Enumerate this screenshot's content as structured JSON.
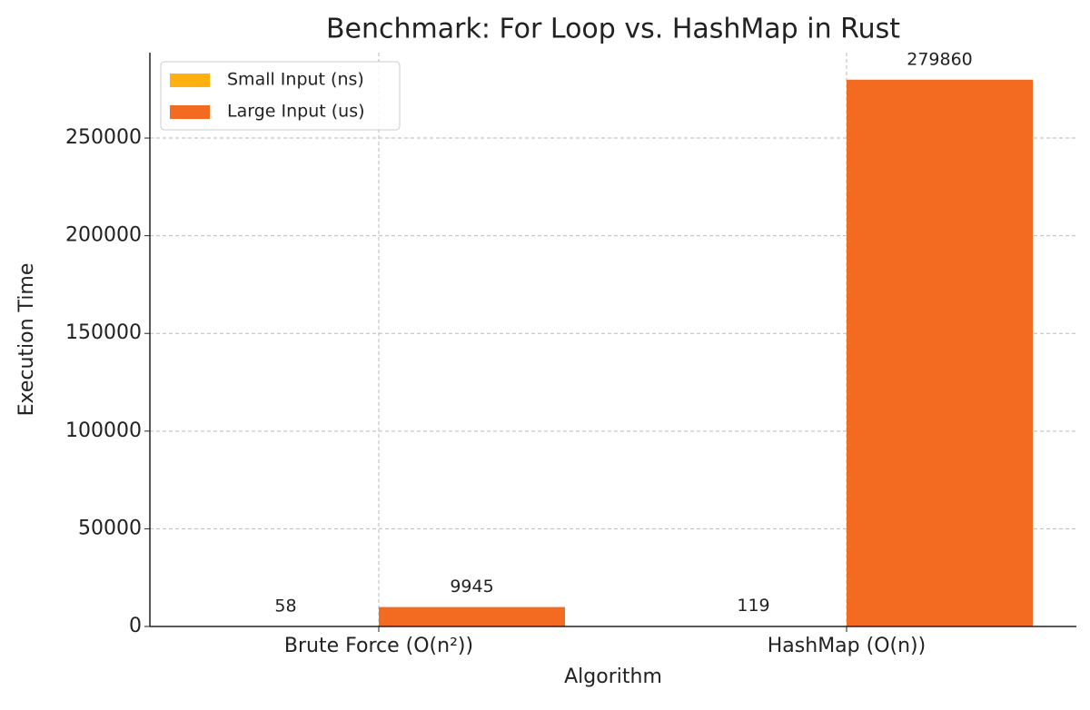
{
  "chart_data": {
    "type": "grouped_bar",
    "title": "Benchmark: For Loop vs. HashMap in Rust",
    "x_label": "Algorithm",
    "y_label": "Execution Time",
    "categories": [
      "Brute Force (O(n²))",
      "HashMap (O(n))"
    ],
    "series": [
      {
        "name": "Small Input (ns)",
        "color": "#ffb20f",
        "values": [
          58,
          119
        ]
      },
      {
        "name": "Large Input (us)",
        "color": "#f26b21",
        "values": [
          9945,
          279860
        ]
      }
    ],
    "ylim": [
      0,
      293700
    ],
    "yticks": [
      0,
      50000,
      100000,
      150000,
      200000,
      250000
    ],
    "grid": true,
    "legend": "upper left"
  }
}
